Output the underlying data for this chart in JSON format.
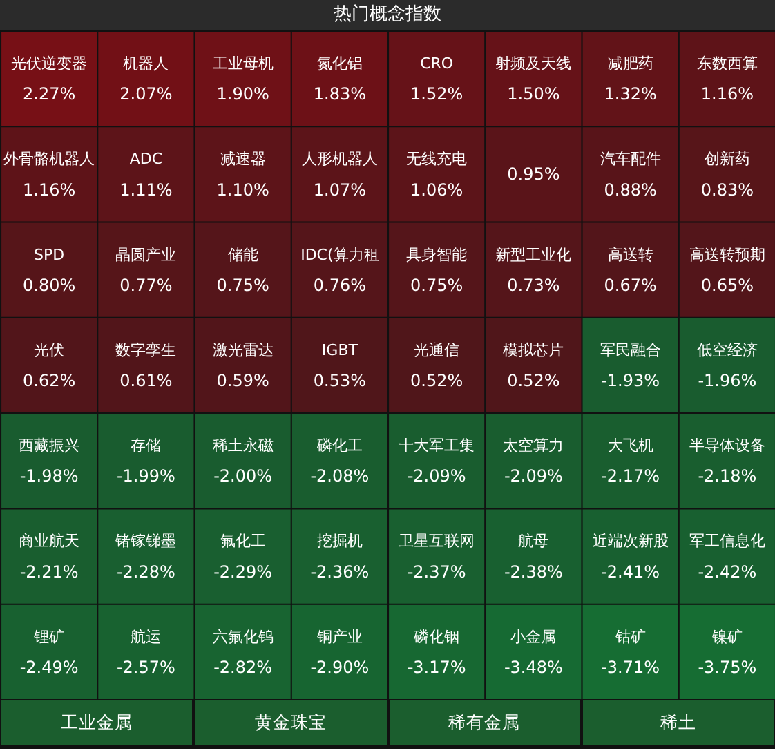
{
  "chart_data": {
    "type": "other",
    "title": "热门概念指数",
    "categories": [
      "光伏逆变器",
      "机器人",
      "工业母机",
      "氮化铝",
      "CRO",
      "射频及天线",
      "减肥药",
      "东数西算",
      "外骨骼机器人",
      "ADC",
      "减速器",
      "人形机器人",
      "无线充电",
      null,
      "汽车配件",
      "创新药",
      "SPD",
      "晶圆产业",
      "储能",
      "IDC(算力租",
      "具身智能",
      "新型工业化",
      "高送转",
      "高送转预期",
      "光伏",
      "数字孪生",
      "激光雷达",
      "IGBT",
      "光通信",
      "模拟芯片",
      "军民融合",
      "低空经济",
      "西藏振兴",
      "存储",
      "稀土永磁",
      "磷化工",
      "十大军工集",
      "太空算力",
      "大飞机",
      "半导体设备",
      "商业航天",
      "锗镓锑墨",
      "氟化工",
      "挖掘机",
      "卫星互联网",
      "航母",
      "近端次新股",
      "军工信息化",
      "锂矿",
      "航运",
      "六氟化钨",
      "铜产业",
      "磷化铟",
      "小金属",
      "钴矿",
      "镍矿"
    ],
    "values": [
      2.27,
      2.07,
      1.9,
      1.83,
      1.52,
      1.5,
      1.32,
      1.16,
      1.16,
      1.11,
      1.1,
      1.07,
      1.06,
      0.95,
      0.88,
      0.83,
      0.8,
      0.77,
      0.75,
      0.76,
      0.75,
      0.73,
      0.67,
      0.65,
      0.62,
      0.61,
      0.59,
      0.53,
      0.52,
      0.52,
      -1.93,
      -1.96,
      -1.98,
      -1.99,
      -2.0,
      -2.08,
      -2.09,
      -2.09,
      -2.17,
      -2.18,
      -2.21,
      -2.28,
      -2.29,
      -2.36,
      -2.37,
      -2.38,
      -2.41,
      -2.42,
      -2.49,
      -2.57,
      -2.82,
      -2.9,
      -3.17,
      -3.48,
      -3.71,
      -3.75
    ],
    "value_labels": [
      "2.27%",
      "2.07%",
      "1.90%",
      "1.83%",
      "1.52%",
      "1.50%",
      "1.32%",
      "1.16%",
      "1.16%",
      "1.11%",
      "1.10%",
      "1.07%",
      "1.06%",
      "0.95%",
      "0.88%",
      "0.83%",
      "0.80%",
      "0.77%",
      "0.75%",
      "0.76%",
      "0.75%",
      "0.73%",
      "0.67%",
      "0.65%",
      "0.62%",
      "0.61%",
      "0.59%",
      "0.53%",
      "0.52%",
      "0.52%",
      "-1.93%",
      "-1.96%",
      "-1.98%",
      "-1.99%",
      "-2.00%",
      "-2.08%",
      "-2.09%",
      "-2.09%",
      "-2.17%",
      "-2.18%",
      "-2.21%",
      "-2.28%",
      "-2.29%",
      "-2.36%",
      "-2.37%",
      "-2.38%",
      "-2.41%",
      "-2.42%",
      "-2.49%",
      "-2.57%",
      "-2.82%",
      "-2.90%",
      "-3.17%",
      "-3.48%",
      "-3.71%",
      "-3.75%"
    ],
    "annotations": [
      "工业金属",
      "黄金珠宝",
      "稀有金属",
      "稀土"
    ]
  }
}
